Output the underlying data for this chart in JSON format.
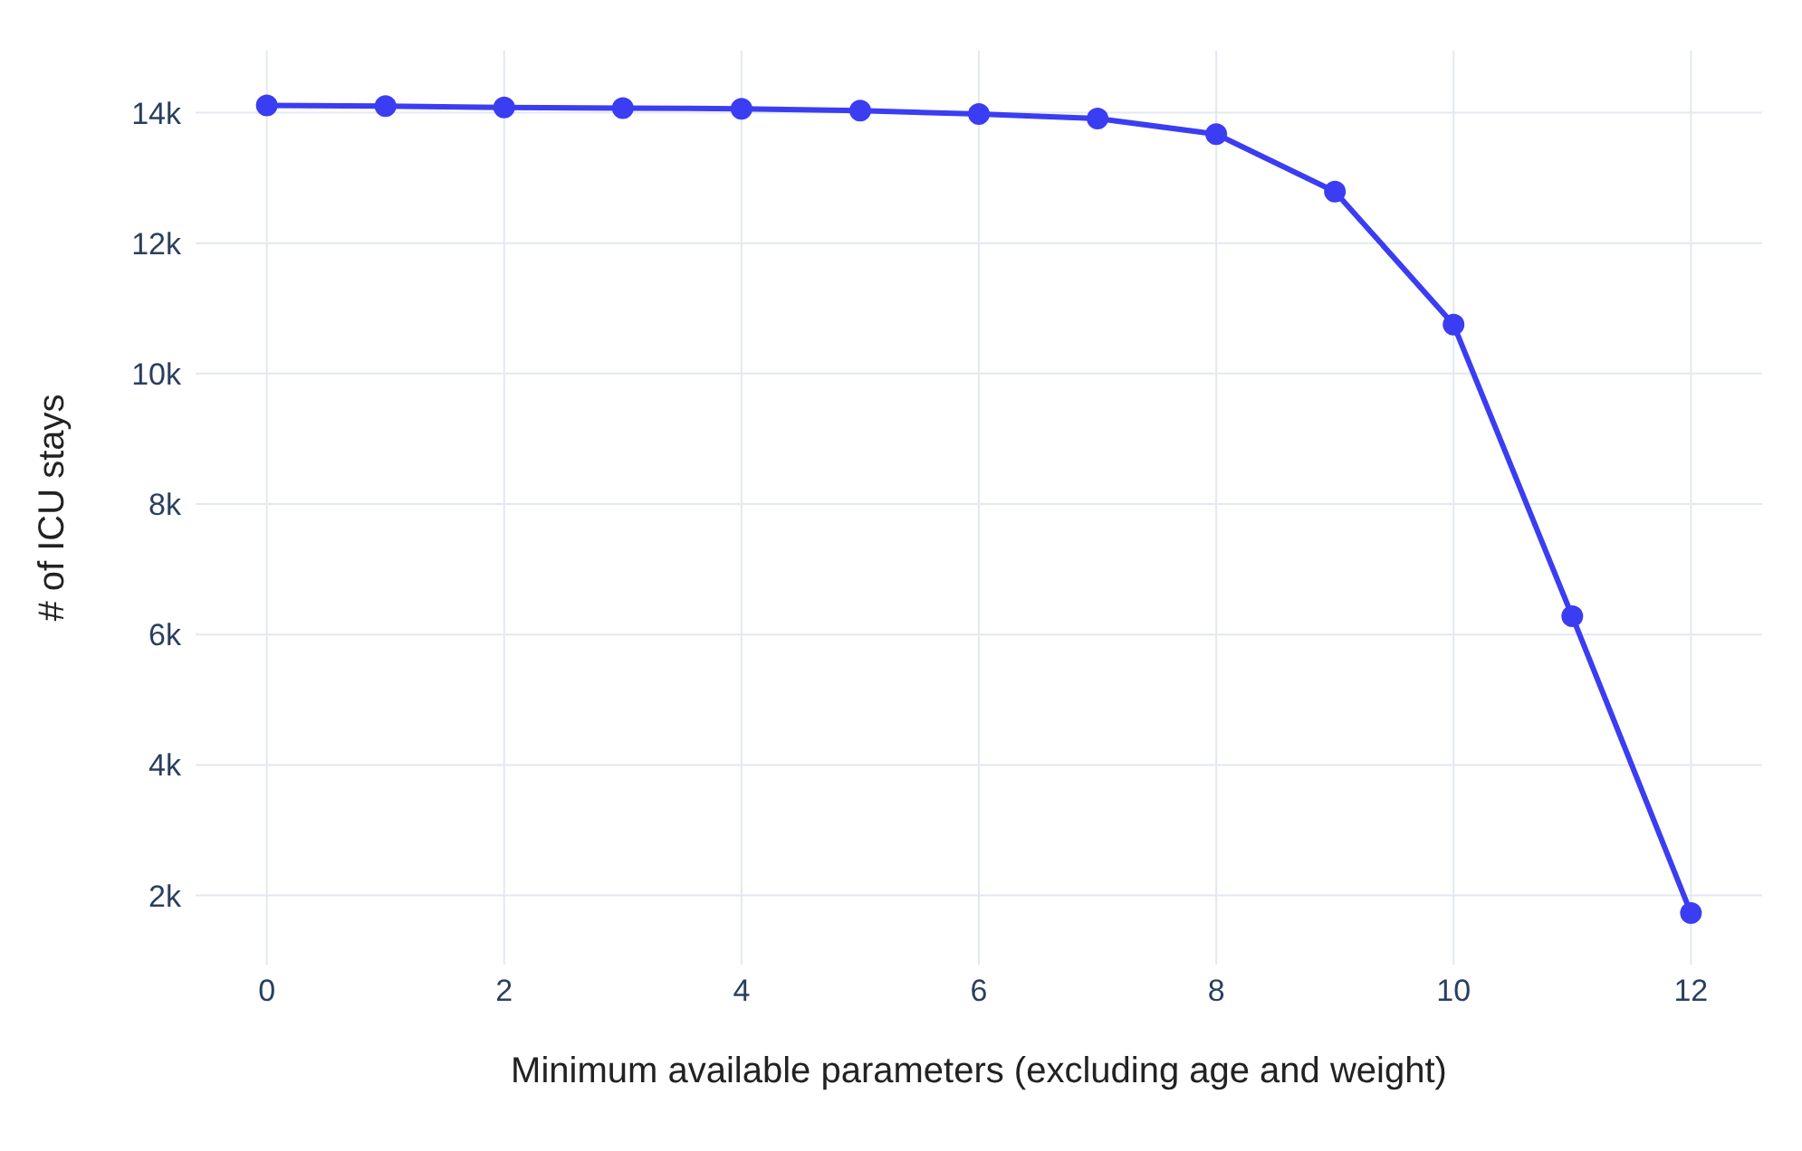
{
  "chart_data": {
    "type": "line",
    "xlabel": "Minimum available parameters (excluding age and weight)",
    "ylabel": "# of ICU stays",
    "x": [
      0,
      1,
      2,
      3,
      4,
      5,
      6,
      7,
      8,
      9,
      10,
      11,
      12
    ],
    "series": [
      {
        "color": "#3b3df2",
        "values": [
          14110,
          14100,
          14080,
          14070,
          14060,
          14030,
          13980,
          13910,
          13670,
          12790,
          10750,
          6280,
          1730
        ]
      }
    ],
    "xlim": [
      -0.6,
      12.6
    ],
    "xticks": [
      0,
      2,
      4,
      6,
      8,
      10,
      12
    ],
    "ylim": [
      940,
      14950
    ],
    "yticks": [
      {
        "value": 2000,
        "label": "2k"
      },
      {
        "value": 4000,
        "label": "4k"
      },
      {
        "value": 6000,
        "label": "6k"
      },
      {
        "value": 8000,
        "label": "8k"
      },
      {
        "value": 10000,
        "label": "10k"
      },
      {
        "value": 12000,
        "label": "12k"
      },
      {
        "value": 14000,
        "label": "14k"
      }
    ],
    "grid": true,
    "marker": "circle",
    "line_style": "solid"
  }
}
